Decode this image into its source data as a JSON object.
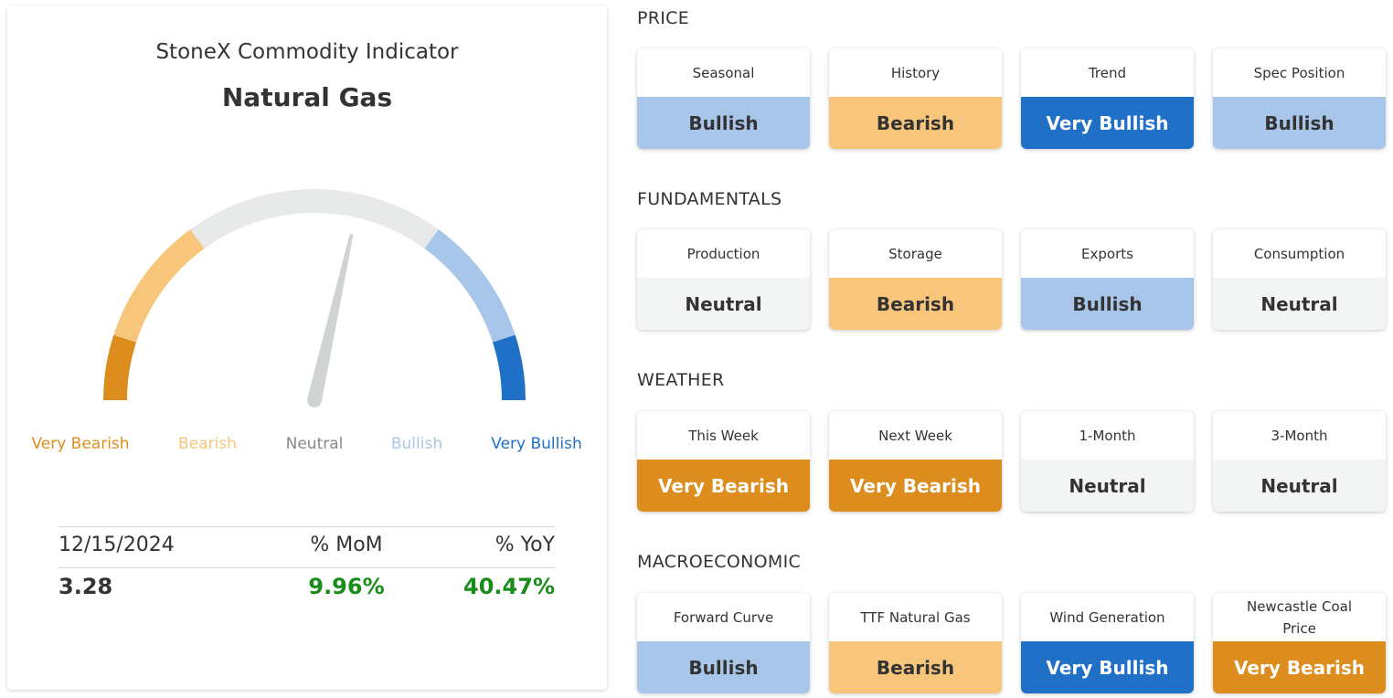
{
  "indicator": {
    "subtitle": "StoneX Commodity Indicator",
    "title": "Natural Gas",
    "gauge_position": 0.57,
    "colors": {
      "very_bearish": "#dc8d1d",
      "bearish": "#f7c67b",
      "neutral": "#e8e9e9",
      "bullish": "#a8c6e9",
      "very_bullish": "#2170c7",
      "needle": "#d0d3d4"
    },
    "scale_labels": [
      "Very Bearish",
      "Bearish",
      "Neutral",
      "Bullish",
      "Very Bullish"
    ],
    "stats": {
      "date": "12/15/2024",
      "mom_label": "% MoM",
      "yoy_label": "% YoY",
      "value": "3.28",
      "mom": "9.96%",
      "yoy": "40.47%"
    }
  },
  "sections": [
    {
      "title": "PRICE",
      "tiles": [
        {
          "label": "Seasonal",
          "value": "Bullish"
        },
        {
          "label": "History",
          "value": "Bearish"
        },
        {
          "label": "Trend",
          "value": "Very Bullish"
        },
        {
          "label": "Spec Position",
          "value": "Bullish"
        }
      ]
    },
    {
      "title": "FUNDAMENTALS",
      "tiles": [
        {
          "label": "Production",
          "value": "Neutral"
        },
        {
          "label": "Storage",
          "value": "Bearish"
        },
        {
          "label": "Exports",
          "value": "Bullish"
        },
        {
          "label": "Consumption",
          "value": "Neutral"
        }
      ]
    },
    {
      "title": "WEATHER",
      "tiles": [
        {
          "label": "This Week",
          "value": "Very Bearish"
        },
        {
          "label": "Next Week",
          "value": "Very Bearish"
        },
        {
          "label": "1-Month",
          "value": "Neutral"
        },
        {
          "label": "3-Month",
          "value": "Neutral"
        }
      ]
    },
    {
      "title": "MACROECONOMIC",
      "tiles": [
        {
          "label": "Forward Curve",
          "value": "Bullish"
        },
        {
          "label": "TTF Natural Gas",
          "value": "Bearish"
        },
        {
          "label": "Wind Generation",
          "value": "Very Bullish"
        },
        {
          "label": "Newcastle Coal Price",
          "value": "Very Bearish"
        }
      ]
    }
  ]
}
